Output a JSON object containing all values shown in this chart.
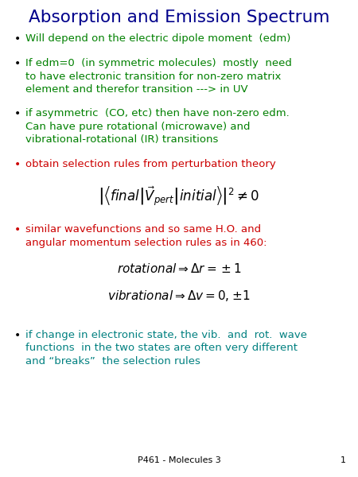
{
  "title": "Absorption and Emission Spectrum",
  "title_color": "#00008B",
  "title_fontsize": 15.5,
  "background_color": "#ffffff",
  "bullets": [
    {
      "text": "Will depend on the electric dipole moment  (edm)",
      "color": "#008000",
      "bullet_color": "#000000",
      "multiline": false
    },
    {
      "text": "If edm=0  (in symmetric molecules)  mostly  need\nto have electronic transition for non-zero matrix\nelement and therefor transition ---> in UV",
      "color": "#008000",
      "bullet_color": "#000000",
      "multiline": true
    },
    {
      "text": "if asymmetric  (CO, etc) then have non-zero edm.\nCan have pure rotational (microwave) and\nvibrational-rotational (IR) transitions",
      "color": "#008000",
      "bullet_color": "#000000",
      "multiline": true
    },
    {
      "text": "obtain selection rules from perturbation theory",
      "color": "#CC0000",
      "bullet_color": "#CC0000",
      "multiline": false
    }
  ],
  "formula_color": "#000000",
  "bullets2": [
    {
      "text": "similar wavefunctions and so same H.O. and\nangular momentum selection rules as in 460:",
      "color": "#CC0000",
      "bullet_color": "#CC0000",
      "multiline": true
    }
  ],
  "bullets3": [
    {
      "text": "if change in electronic state, the vib.  and  rot.  wave\nfunctions  in the two states are often very different\nand “breaks”  the selection rules",
      "color": "#008080",
      "bullet_color": "#000000",
      "multiline": true
    }
  ],
  "footer_text": "P461 - Molecules 3",
  "footer_page": "1",
  "fontsize": 9.5,
  "formula_fontsize": 12,
  "eq_fontsize": 11
}
